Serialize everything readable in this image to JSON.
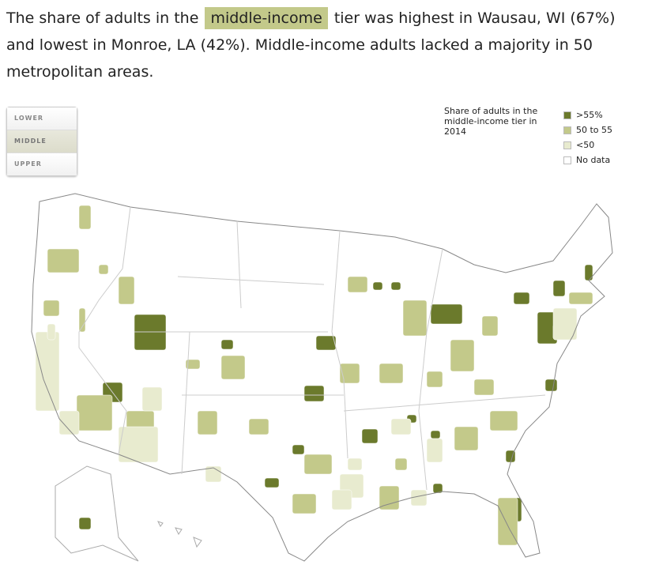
{
  "header": {
    "text_before": "The share of adults in the",
    "highlight": "middle-income",
    "text_after": "tier was highest in Wausau, WI (67%) and lowest in Monroe, LA (42%). Middle-income adults lacked a majority in 50 metropolitan areas."
  },
  "tabs": [
    {
      "label": "LOWER",
      "selected": false
    },
    {
      "label": "MIDDLE",
      "selected": true
    },
    {
      "label": "UPPER",
      "selected": false
    }
  ],
  "legend": {
    "title": "Share of adults in the middle-income tier in 2014",
    "items": [
      {
        "label": ">55%",
        "color": "#6b7a2c"
      },
      {
        "label": "50 to 55",
        "color": "#c3c98a"
      },
      {
        "label": "<50",
        "color": "#e8ebcf"
      },
      {
        "label": "No data",
        "color": "#ffffff"
      }
    ]
  }
}
